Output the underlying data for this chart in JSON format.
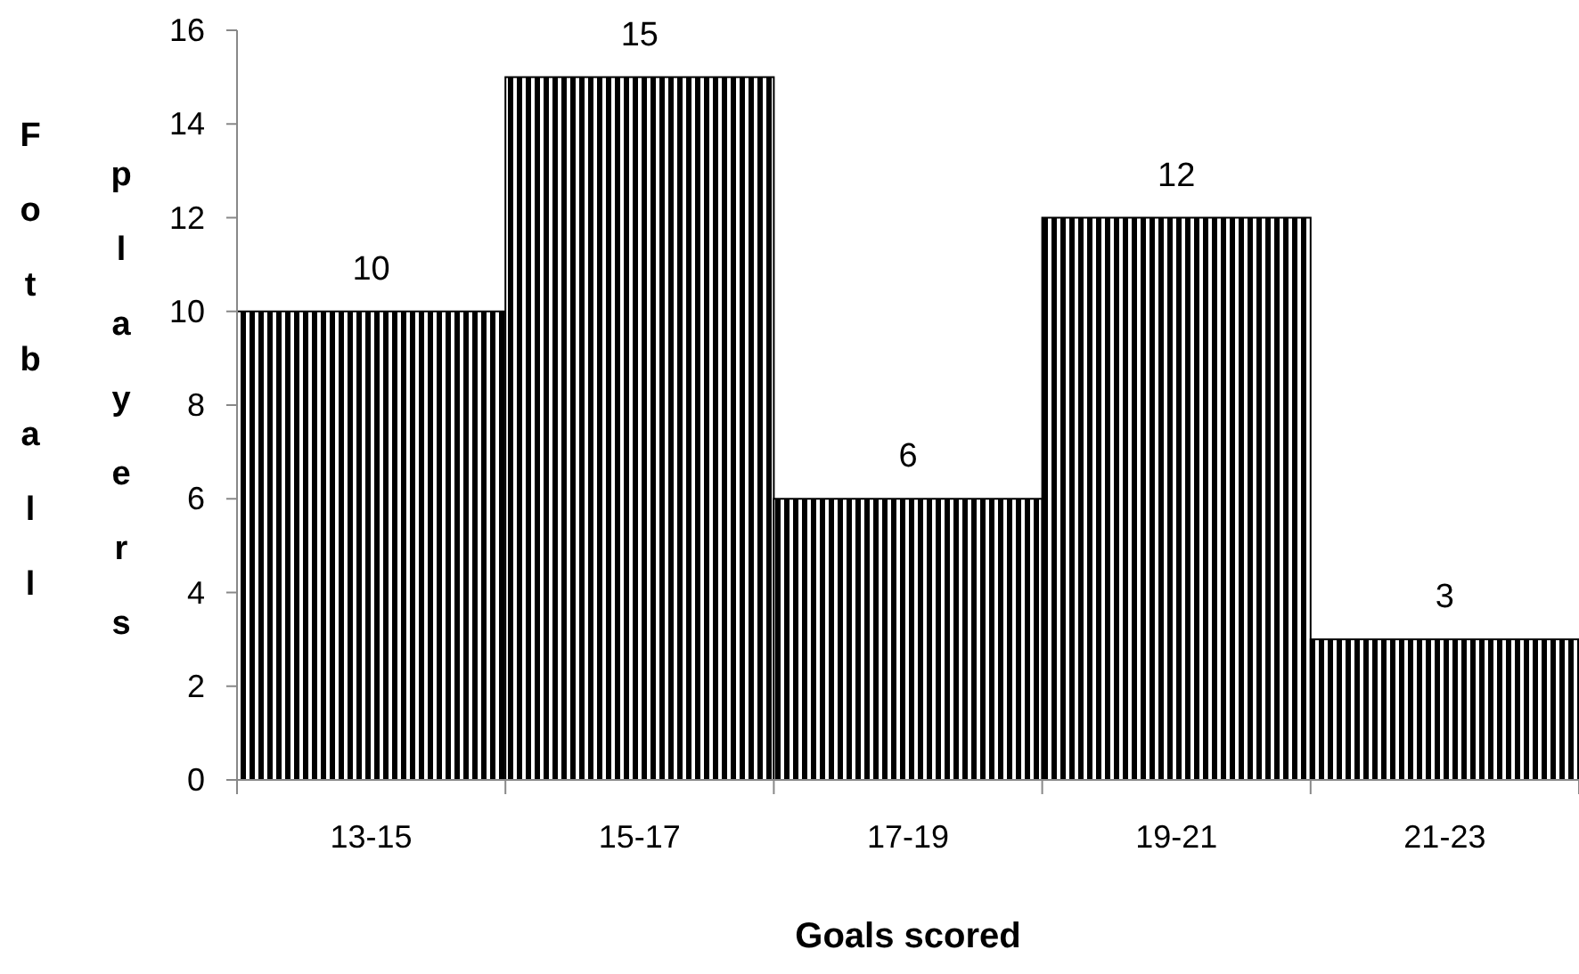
{
  "chart_data": {
    "type": "bar",
    "xlabel": "Goals scored",
    "ylabel": "Fotball players",
    "categories": [
      "13-15",
      "15-17",
      "17-19",
      "19-21",
      "21-23"
    ],
    "values": [
      10,
      15,
      6,
      12,
      3
    ],
    "color": "#000000",
    "ylim": [
      0,
      16
    ],
    "yticks": [
      0,
      2,
      4,
      6,
      8,
      10,
      12,
      14,
      16
    ],
    "data_labels": true
  }
}
